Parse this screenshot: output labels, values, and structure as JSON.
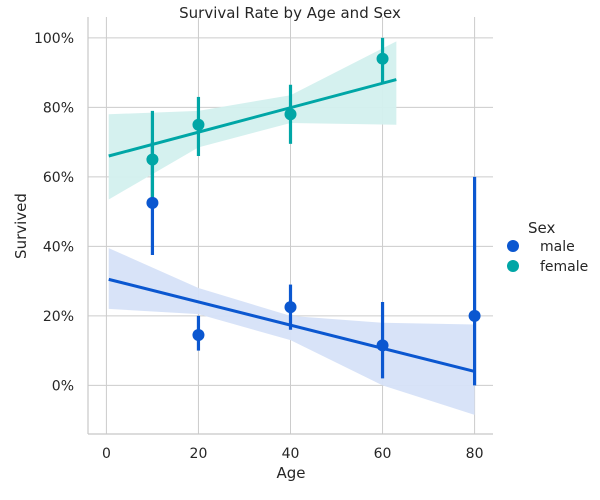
{
  "chart_data": {
    "type": "scatter",
    "title": "Survival Rate by Age and Sex",
    "xlabel": "Age",
    "ylabel": "Survived",
    "xlim": [
      -4,
      84
    ],
    "ylim": [
      -0.14,
      1.06
    ],
    "x_ticks": [
      0,
      20,
      40,
      60,
      80
    ],
    "x_tick_labels": [
      "0",
      "20",
      "40",
      "60",
      "80"
    ],
    "y_ticks": [
      0,
      0.2,
      0.4,
      0.6,
      0.8,
      1.0
    ],
    "y_tick_labels": [
      "0%",
      "20%",
      "40%",
      "60%",
      "80%",
      "100%"
    ],
    "grid": true,
    "legend": {
      "title": "Sex",
      "placement": "right"
    },
    "series": [
      {
        "name": "male",
        "color": "#0b57d0",
        "band_color": "#d6e2f8",
        "points": [
          {
            "x": 10,
            "y": 0.525,
            "err_low": 0.375,
            "err_high": 0.7
          },
          {
            "x": 20,
            "y": 0.145,
            "err_low": 0.1,
            "err_high": 0.2
          },
          {
            "x": 40,
            "y": 0.225,
            "err_low": 0.16,
            "err_high": 0.29
          },
          {
            "x": 60,
            "y": 0.115,
            "err_low": 0.02,
            "err_high": 0.24
          },
          {
            "x": 80,
            "y": 0.2,
            "err_low": 0.0,
            "err_high": 0.6
          }
        ],
        "regression": {
          "x0": 0.5,
          "y0": 0.305,
          "x1": 80,
          "y1": 0.04
        },
        "ci_band": [
          {
            "x": 0.5,
            "low": 0.22,
            "high": 0.395
          },
          {
            "x": 20,
            "low": 0.205,
            "high": 0.28
          },
          {
            "x": 40,
            "low": 0.13,
            "high": 0.2
          },
          {
            "x": 60,
            "low": 0.0,
            "high": 0.18
          },
          {
            "x": 80,
            "low": -0.085,
            "high": 0.175
          }
        ]
      },
      {
        "name": "female",
        "color": "#00a6a6",
        "band_color": "#d3f0ee",
        "points": [
          {
            "x": 10,
            "y": 0.65,
            "err_low": 0.52,
            "err_high": 0.79
          },
          {
            "x": 20,
            "y": 0.75,
            "err_low": 0.66,
            "err_high": 0.83
          },
          {
            "x": 40,
            "y": 0.78,
            "err_low": 0.695,
            "err_high": 0.865
          },
          {
            "x": 60,
            "y": 0.94,
            "err_low": 0.87,
            "err_high": 1.0
          }
        ],
        "regression": {
          "x0": 0.5,
          "y0": 0.66,
          "x1": 63,
          "y1": 0.88
        },
        "ci_band": [
          {
            "x": 0.5,
            "low": 0.535,
            "high": 0.78
          },
          {
            "x": 20,
            "low": 0.685,
            "high": 0.79
          },
          {
            "x": 40,
            "low": 0.755,
            "high": 0.835
          },
          {
            "x": 63,
            "low": 0.75,
            "high": 0.99
          }
        ]
      }
    ]
  }
}
